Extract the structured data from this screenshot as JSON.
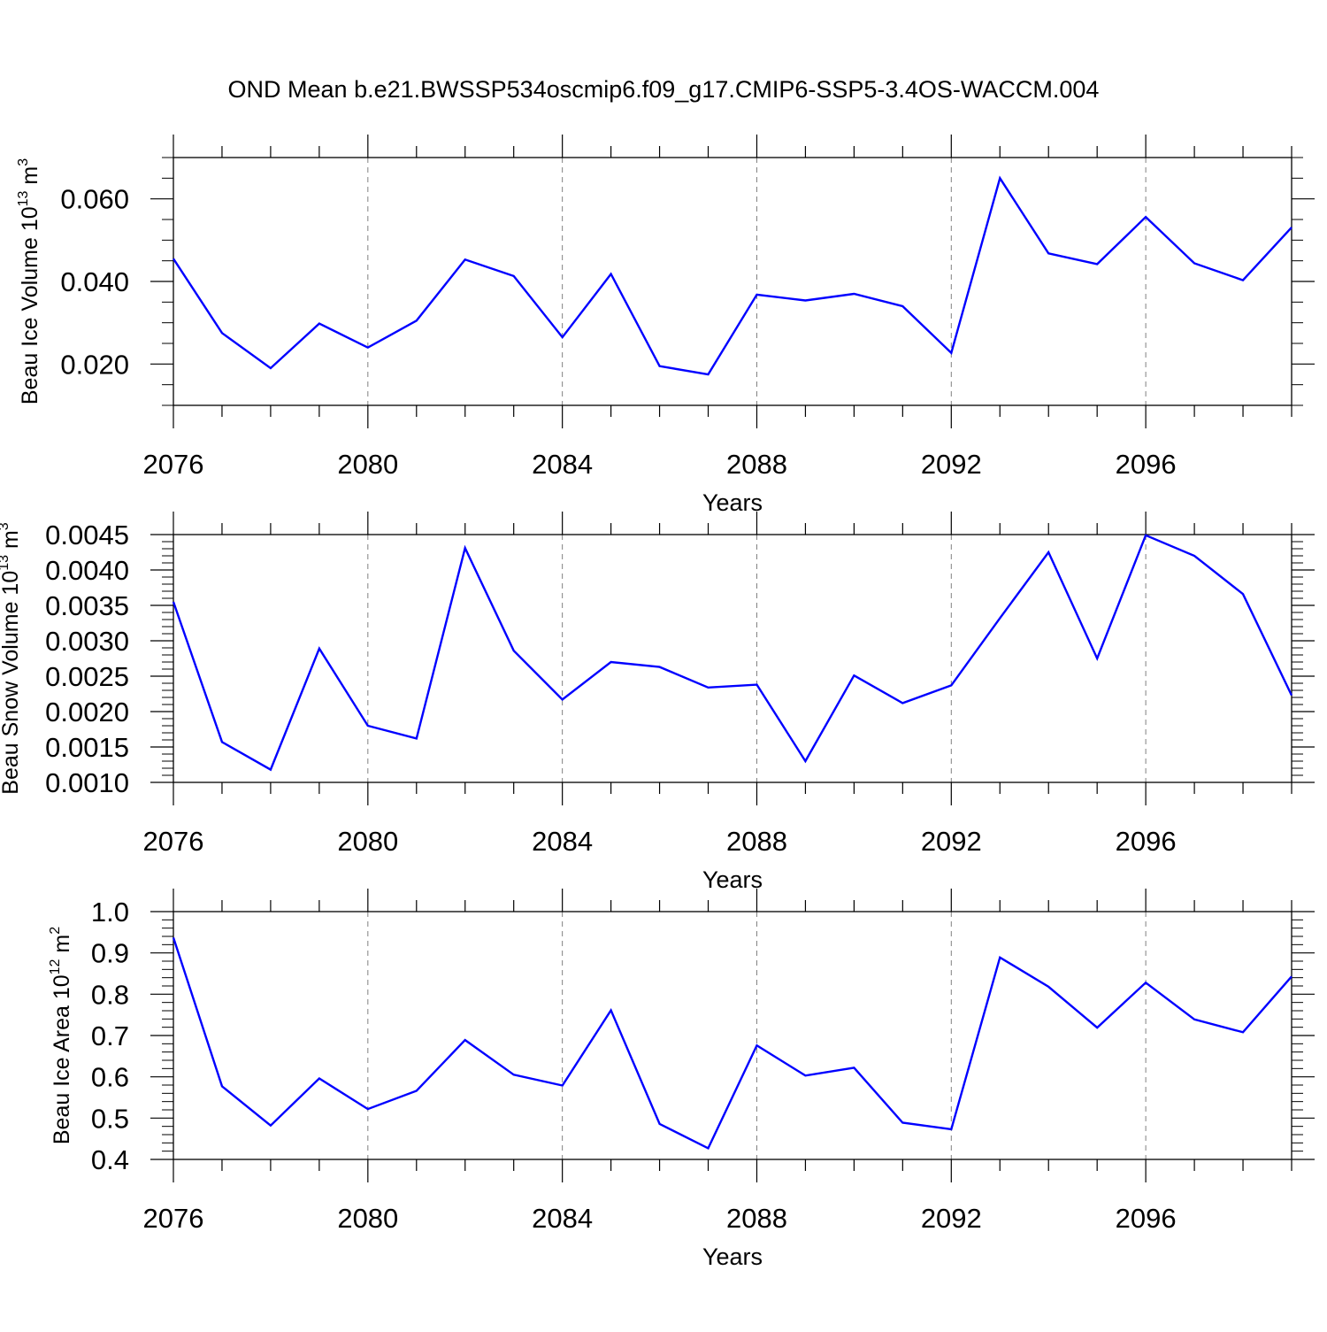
{
  "figure": {
    "title": "OND Mean b.e21.BWSSP534oscmip6.f09_g17.CMIP6-SSP5-3.4OS-WACCM.004"
  },
  "colors": {
    "series": "#0000ff",
    "axes": "#000000",
    "grid": "#808080"
  },
  "chart_data": [
    {
      "type": "line",
      "ylabel": "Beau Ice Volume 10",
      "ylabel_exp": "13",
      "ylabel_unit": " m",
      "ylabel_unit_exp": "3",
      "xlabel": "Years",
      "xlim": [
        2076,
        2099
      ],
      "ylim": [
        0.01,
        0.07
      ],
      "yticks": [
        0.02,
        0.04,
        0.06
      ],
      "ytick_labels": [
        "0.020",
        "0.040",
        "0.060"
      ],
      "xticks": [
        2076,
        2080,
        2084,
        2088,
        2092,
        2096
      ],
      "xtick_labels": [
        "2076",
        "2080",
        "2084",
        "2088",
        "2092",
        "2096"
      ],
      "x": [
        2076,
        2077,
        2078,
        2079,
        2080,
        2081,
        2082,
        2083,
        2084,
        2085,
        2086,
        2087,
        2088,
        2089,
        2090,
        2091,
        2092,
        2093,
        2094,
        2095,
        2096,
        2097,
        2098,
        2099
      ],
      "values": [
        0.0455,
        0.0275,
        0.019,
        0.0298,
        0.024,
        0.0305,
        0.0453,
        0.0413,
        0.0265,
        0.0418,
        0.0195,
        0.0175,
        0.0368,
        0.0354,
        0.037,
        0.034,
        0.0227,
        0.065,
        0.0468,
        0.0442,
        0.0556,
        0.0444,
        0.0403,
        0.0531
      ],
      "grid": "vertical dashed at major x ticks"
    },
    {
      "type": "line",
      "ylabel": "Beau Snow Volume 10",
      "ylabel_exp": "13",
      "ylabel_unit": " m",
      "ylabel_unit_exp": "3",
      "xlabel": "Years",
      "xlim": [
        2076,
        2099
      ],
      "ylim": [
        0.001,
        0.0045
      ],
      "yticks": [
        0.001,
        0.0015,
        0.002,
        0.0025,
        0.003,
        0.0035,
        0.004,
        0.0045
      ],
      "ytick_labels": [
        "0.0010",
        "0.0015",
        "0.0020",
        "0.0025",
        "0.0030",
        "0.0035",
        "0.0040",
        "0.0045"
      ],
      "xticks": [
        2076,
        2080,
        2084,
        2088,
        2092,
        2096
      ],
      "xtick_labels": [
        "2076",
        "2080",
        "2084",
        "2088",
        "2092",
        "2096"
      ],
      "x": [
        2076,
        2077,
        2078,
        2079,
        2080,
        2081,
        2082,
        2083,
        2084,
        2085,
        2086,
        2087,
        2088,
        2089,
        2090,
        2091,
        2092,
        2093,
        2094,
        2095,
        2096,
        2097,
        2098,
        2099
      ],
      "values": [
        0.00355,
        0.00157,
        0.00118,
        0.00289,
        0.0018,
        0.00162,
        0.00431,
        0.00286,
        0.00217,
        0.0027,
        0.00263,
        0.00234,
        0.00238,
        0.0013,
        0.00251,
        0.00212,
        0.00237,
        0.00332,
        0.00425,
        0.00275,
        0.00449,
        0.0042,
        0.00366,
        0.00223
      ],
      "grid": "vertical dashed at major x ticks"
    },
    {
      "type": "line",
      "ylabel": "Beau Ice Area 10",
      "ylabel_exp": "12",
      "ylabel_unit": " m",
      "ylabel_unit_exp": "2",
      "xlabel": "Years",
      "xlim": [
        2076,
        2099
      ],
      "ylim": [
        0.4,
        1.0
      ],
      "yticks": [
        0.4,
        0.5,
        0.6,
        0.7,
        0.8,
        0.9,
        1.0
      ],
      "ytick_labels": [
        "0.4",
        "0.5",
        "0.6",
        "0.7",
        "0.8",
        "0.9",
        "1.0"
      ],
      "xticks": [
        2076,
        2080,
        2084,
        2088,
        2092,
        2096
      ],
      "xtick_labels": [
        "2076",
        "2080",
        "2084",
        "2088",
        "2092",
        "2096"
      ],
      "x": [
        2076,
        2077,
        2078,
        2079,
        2080,
        2081,
        2082,
        2083,
        2084,
        2085,
        2086,
        2087,
        2088,
        2089,
        2090,
        2091,
        2092,
        2093,
        2094,
        2095,
        2096,
        2097,
        2098,
        2099
      ],
      "values": [
        0.937,
        0.577,
        0.482,
        0.596,
        0.522,
        0.566,
        0.689,
        0.605,
        0.579,
        0.761,
        0.486,
        0.427,
        0.676,
        0.603,
        0.622,
        0.489,
        0.473,
        0.889,
        0.818,
        0.719,
        0.828,
        0.739,
        0.708,
        0.843
      ],
      "grid": "vertical dashed at major x ticks"
    }
  ]
}
